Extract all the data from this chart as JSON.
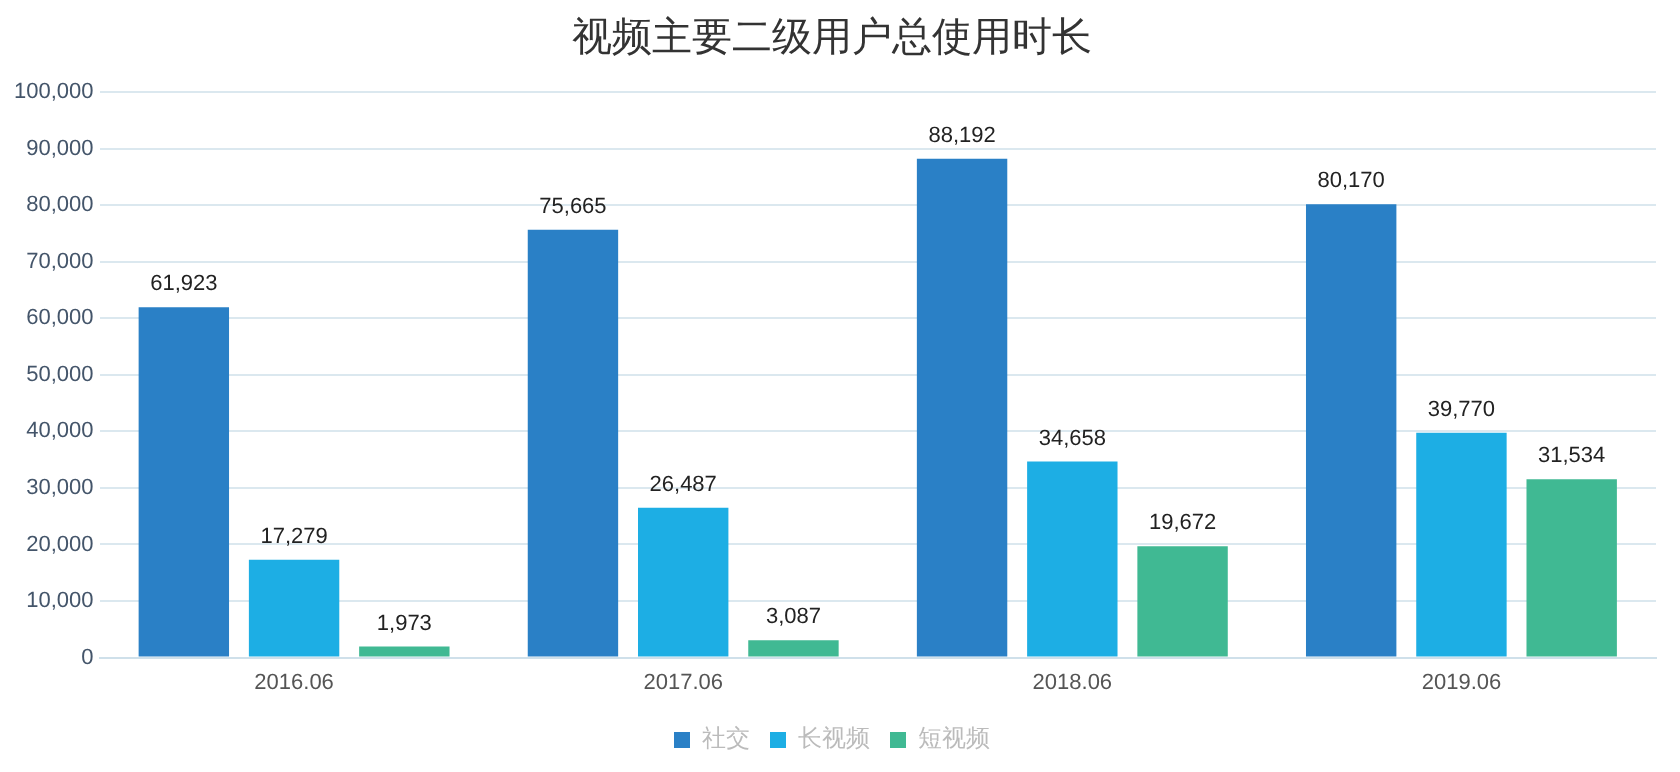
{
  "chart_data": {
    "type": "bar",
    "title": "视频主要二级用户总使用时长",
    "categories": [
      "2016.06",
      "2017.06",
      "2018.06",
      "2019.06"
    ],
    "series": [
      {
        "name": "社交",
        "color": "#2a80c6",
        "values": [
          61923,
          75665,
          88192,
          80170
        ],
        "value_labels": [
          "61,923",
          "75,665",
          "88,192",
          "80,170"
        ]
      },
      {
        "name": "长视频",
        "color": "#1daee4",
        "values": [
          17279,
          26487,
          34658,
          39770
        ],
        "value_labels": [
          "17,279",
          "26,487",
          "34,658",
          "39,770"
        ]
      },
      {
        "name": "短视频",
        "color": "#40b993",
        "values": [
          1973,
          3087,
          19672,
          31534
        ],
        "value_labels": [
          "1,973",
          "3,087",
          "19,672",
          "31,534"
        ]
      }
    ],
    "ylim": [
      0,
      100000
    ],
    "yticks": [
      {
        "value": 0,
        "label": "0"
      },
      {
        "value": 10000,
        "label": "10,000"
      },
      {
        "value": 20000,
        "label": "20,000"
      },
      {
        "value": 30000,
        "label": "30,000"
      },
      {
        "value": 40000,
        "label": "40,000"
      },
      {
        "value": 50000,
        "label": "50,000"
      },
      {
        "value": 60000,
        "label": "60,000"
      },
      {
        "value": 70000,
        "label": "70,000"
      },
      {
        "value": 80000,
        "label": "80,000"
      },
      {
        "value": 90000,
        "label": "90,000"
      },
      {
        "value": 100000,
        "label": "100,000"
      }
    ],
    "grid": "y",
    "legend": "bottom"
  }
}
